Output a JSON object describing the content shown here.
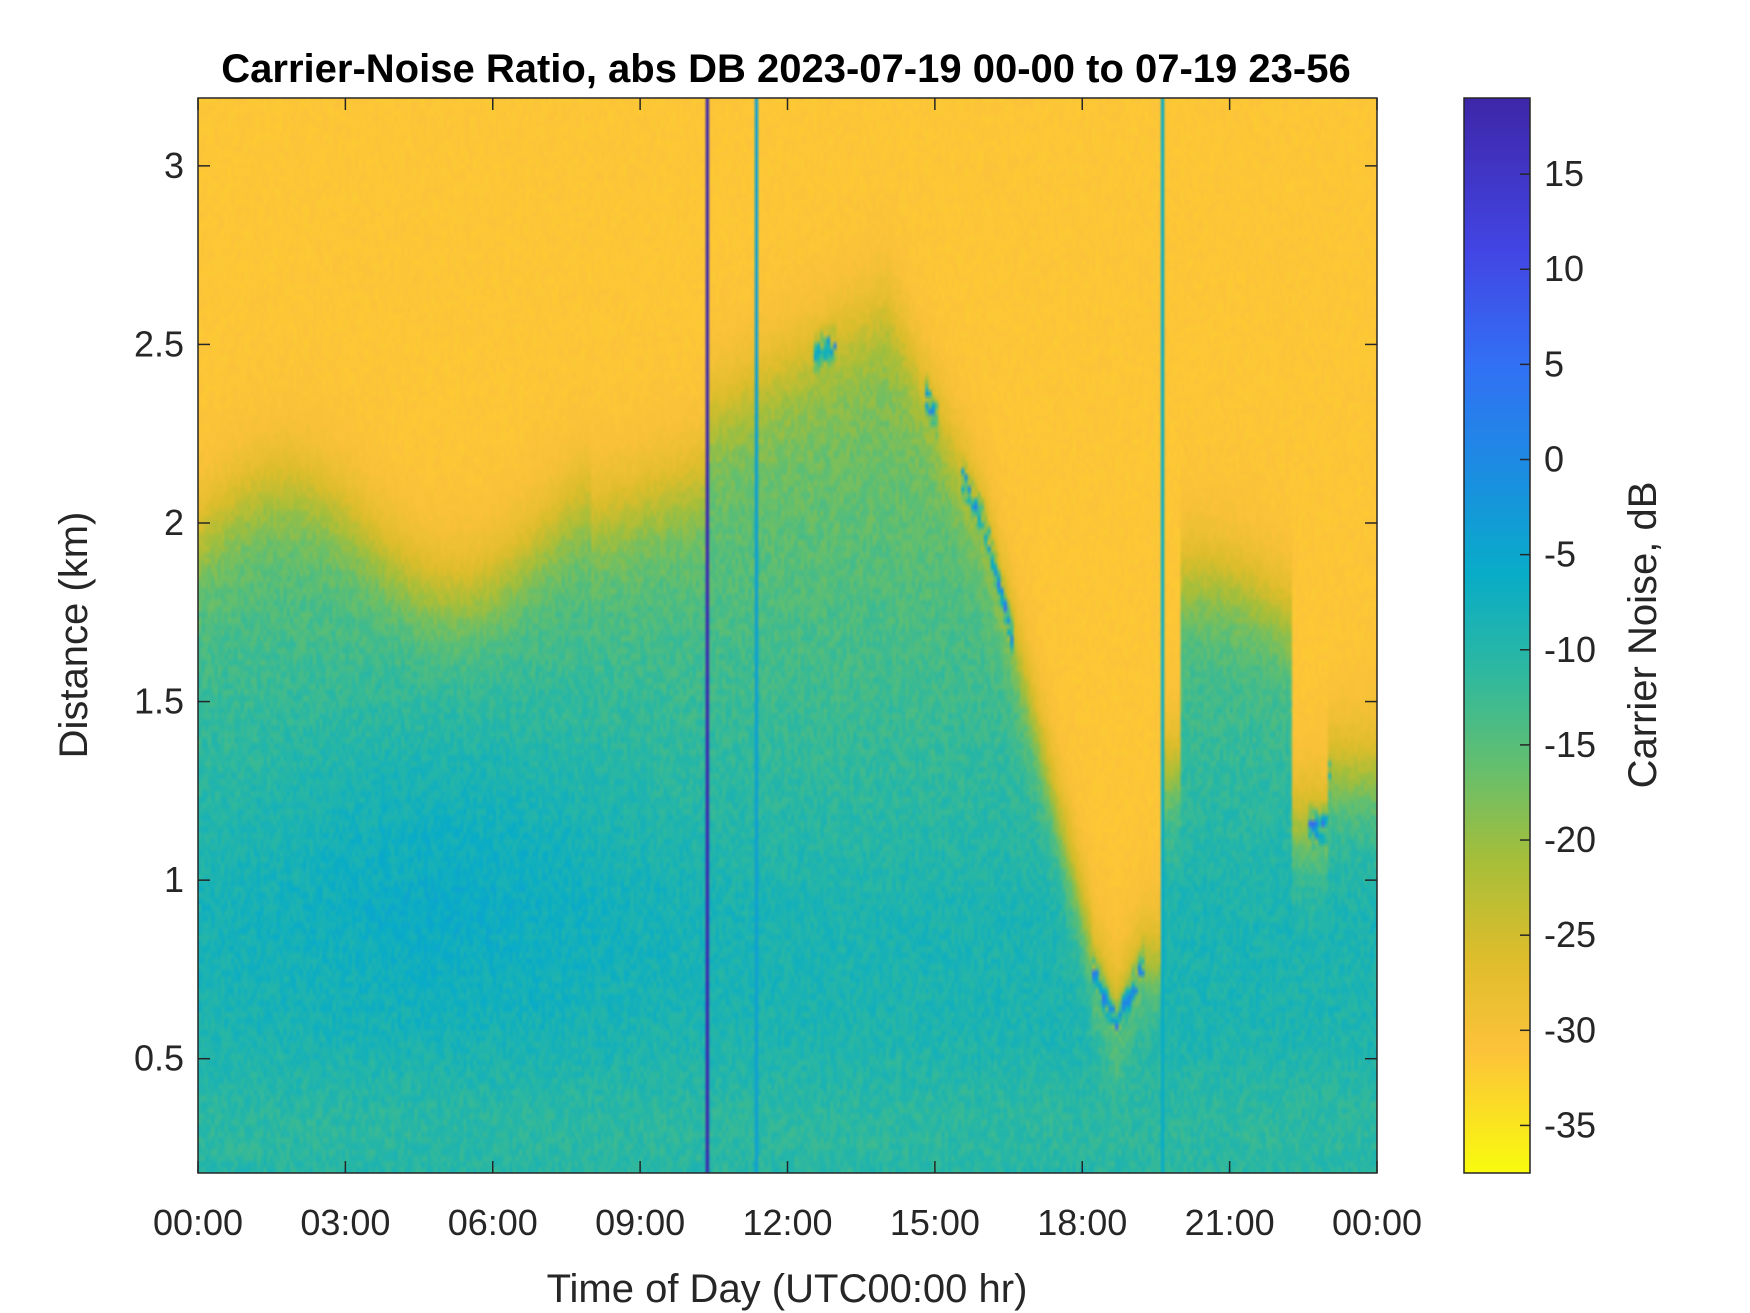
{
  "chart_data": {
    "type": "heatmap",
    "title": "Carrier-Noise Ratio, abs DB 2023-07-19 00-00 to 07-19 23-56",
    "xlabel": "Time of Day (UTC00:00 hr)",
    "ylabel": "Distance (km)",
    "colorbar_label": "Carrier Noise, dB",
    "x_unit": "hours",
    "xlim": [
      0,
      24
    ],
    "ylim": [
      0.18,
      3.19
    ],
    "clim": [
      -37.5,
      19
    ],
    "x_ticks": [
      0,
      3,
      6,
      9,
      12,
      15,
      18,
      21,
      24
    ],
    "x_tick_labels": [
      "00:00",
      "03:00",
      "06:00",
      "09:00",
      "12:00",
      "15:00",
      "18:00",
      "21:00",
      "00:00"
    ],
    "y_ticks": [
      0.5,
      1,
      1.5,
      2,
      2.5,
      3
    ],
    "y_tick_labels": [
      "0.5",
      "1",
      "1.5",
      "2",
      "2.5",
      "3"
    ],
    "colorbar_ticks": [
      15,
      10,
      5,
      0,
      -5,
      -10,
      -15,
      -20,
      -25,
      -30,
      -35
    ],
    "colorbar_tick_labels": [
      "15",
      "10",
      "5",
      "0",
      "-5",
      "-10",
      "-15",
      "-20",
      "-25",
      "-30",
      "-35"
    ],
    "colormap": "parula (reversed: yellow = low, dark blue = high)",
    "colormap_stops": [
      {
        "value": -37.5,
        "color": "#f9fb0e"
      },
      {
        "value": -31,
        "color": "#fcc23a"
      },
      {
        "value": -26,
        "color": "#dcbd2b"
      },
      {
        "value": -21,
        "color": "#a5be3a"
      },
      {
        "value": -16,
        "color": "#62bf6f"
      },
      {
        "value": -11,
        "color": "#2cb8a1"
      },
      {
        "value": -6,
        "color": "#08acc8"
      },
      {
        "value": -1,
        "color": "#1a8fe0"
      },
      {
        "value": 5,
        "color": "#3270f5"
      },
      {
        "value": 11,
        "color": "#4245e3"
      },
      {
        "value": 19,
        "color": "#3e26a8"
      }
    ],
    "grid": false,
    "legend": "colorbar right",
    "description_features": {
      "time_resolution_hr": 0.0667,
      "range_resolution_km": 0.0167,
      "vertical_lines_hr": [
        {
          "x": 10.35,
          "value": 18
        },
        {
          "x": 11.35,
          "value": -4
        },
        {
          "x": 19.65,
          "value": -6
        }
      ]
    }
  }
}
